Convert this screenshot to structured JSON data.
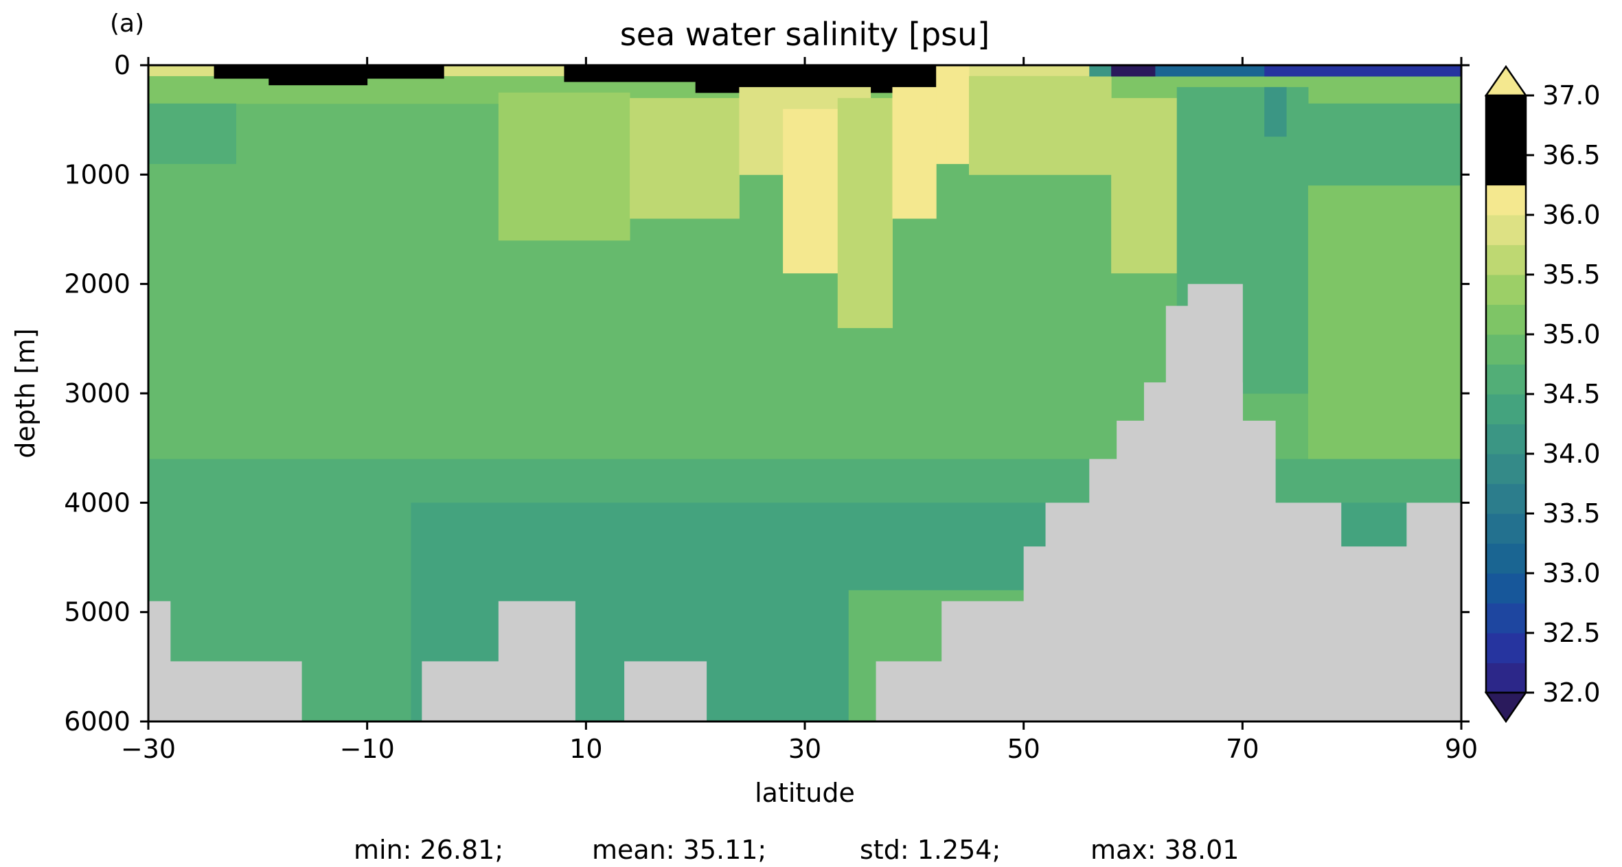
{
  "panel_label": "(a)",
  "chart_data": {
    "type": "heatmap",
    "title": "sea water salinity [psu]",
    "xlabel": "latitude",
    "ylabel": "depth [m]",
    "xlim": [
      -30,
      90
    ],
    "ylim": [
      6000,
      0
    ],
    "y_inverted": true,
    "x_ticks": [
      -30,
      -10,
      10,
      30,
      50,
      70,
      90
    ],
    "x_tick_labels": [
      "−30",
      "−10",
      "10",
      "30",
      "50",
      "70",
      "90"
    ],
    "y_ticks": [
      0,
      1000,
      2000,
      3000,
      4000,
      5000,
      6000
    ],
    "y_tick_labels": [
      "0",
      "1000",
      "2000",
      "3000",
      "4000",
      "5000",
      "6000"
    ],
    "colorbar": {
      "min": 32.0,
      "max": 37.0,
      "step": 0.25,
      "extend": "both",
      "ticks": [
        32.0,
        32.5,
        33.0,
        33.5,
        34.0,
        34.5,
        35.0,
        35.5,
        36.0,
        36.5,
        37.0
      ],
      "tick_labels": [
        "32.0",
        "32.5",
        "33.0",
        "33.5",
        "34.0",
        "34.5",
        "35.0",
        "35.5",
        "36.0",
        "36.5",
        "37.0"
      ],
      "colormap": "haline",
      "colors": [
        "#2a1a5c",
        "#2c2789",
        "#26349f",
        "#1e46a0",
        "#17579a",
        "#1a6592",
        "#23718f",
        "#2c7d8c",
        "#348a88",
        "#3b9684",
        "#44a37e",
        "#52ae77",
        "#66ba6d",
        "#7ec566",
        "#9ccf67",
        "#bed872",
        "#dde184",
        "#f4e88f"
      ]
    },
    "land_color": "#cccccc",
    "blocks": [
      {
        "x0": -30,
        "x1": 90,
        "d0": 0,
        "d1": 6000,
        "s": 34.9
      },
      {
        "x0": -30,
        "x1": 90,
        "d0": 0,
        "d1": 100,
        "s": 35.8
      },
      {
        "x0": -30,
        "x1": 90,
        "d0": 100,
        "d1": 350,
        "s": 35.2
      },
      {
        "x0": -19,
        "x1": -10,
        "d0": 0,
        "d1": 180,
        "s": 36.9
      },
      {
        "x0": -24,
        "x1": -3,
        "d0": 0,
        "d1": 120,
        "s": 36.4
      },
      {
        "x0": 8,
        "x1": 20,
        "d0": 0,
        "d1": 150,
        "s": 36.5
      },
      {
        "x0": 20,
        "x1": 34,
        "d0": 0,
        "d1": 250,
        "s": 36.8
      },
      {
        "x0": 34,
        "x1": 42,
        "d0": 0,
        "d1": 250,
        "s": 36.4
      },
      {
        "x0": 44,
        "x1": 58,
        "d0": 0,
        "d1": 80,
        "s": 35.9
      },
      {
        "x0": -30,
        "x1": -22,
        "d0": 350,
        "d1": 900,
        "s": 34.6
      },
      {
        "x0": 2,
        "x1": 14,
        "d0": 250,
        "d1": 1600,
        "s": 35.3
      },
      {
        "x0": 14,
        "x1": 24,
        "d0": 300,
        "d1": 1400,
        "s": 35.6
      },
      {
        "x0": 24,
        "x1": 36,
        "d0": 200,
        "d1": 1000,
        "s": 35.8
      },
      {
        "x0": 28,
        "x1": 33,
        "d0": 400,
        "d1": 1900,
        "s": 36.0
      },
      {
        "x0": 33,
        "x1": 38,
        "d0": 300,
        "d1": 2400,
        "s": 35.7
      },
      {
        "x0": 38,
        "x1": 42,
        "d0": 200,
        "d1": 1400,
        "s": 36.2
      },
      {
        "x0": 42,
        "x1": 45,
        "d0": 0,
        "d1": 900,
        "s": 37.0
      },
      {
        "x0": 45,
        "x1": 58,
        "d0": 100,
        "d1": 1000,
        "s": 35.6
      },
      {
        "x0": 58,
        "x1": 64,
        "d0": 300,
        "d1": 1900,
        "s": 35.5
      },
      {
        "x0": 64,
        "x1": 76,
        "d0": 200,
        "d1": 3000,
        "s": 34.7
      },
      {
        "x0": 72,
        "x1": 74,
        "d0": 200,
        "d1": 650,
        "s": 34.2
      },
      {
        "x0": 76,
        "x1": 90,
        "d0": 350,
        "d1": 1100,
        "s": 34.7
      },
      {
        "x0": 76,
        "x1": 90,
        "d0": 1100,
        "d1": 4000,
        "s": 35.0
      },
      {
        "x0": 56,
        "x1": 90,
        "d0": 0,
        "d1": 100,
        "s": 34.0
      },
      {
        "x0": 62,
        "x1": 90,
        "d0": 0,
        "d1": 100,
        "s": 33.0
      },
      {
        "x0": 72,
        "x1": 90,
        "d0": 0,
        "d1": 100,
        "s": 32.3
      },
      {
        "x0": 58,
        "x1": 62,
        "d0": 0,
        "d1": 100,
        "s": 31.5
      },
      {
        "x0": -30,
        "x1": 90,
        "d0": 3600,
        "d1": 6000,
        "s": 34.6
      },
      {
        "x0": -6,
        "x1": 90,
        "d0": 4000,
        "d1": 6000,
        "s": 34.4
      },
      {
        "x0": 34,
        "x1": 56,
        "d0": 4800,
        "d1": 6000,
        "s": 34.8
      }
    ],
    "land": [
      {
        "x0": -30,
        "x1": -28,
        "d0": 4900,
        "d1": 6000
      },
      {
        "x0": -30,
        "x1": -16,
        "d0": 5450,
        "d1": 6000
      },
      {
        "x0": -5,
        "x1": 2,
        "d0": 5450,
        "d1": 6000
      },
      {
        "x0": 2,
        "x1": 9,
        "d0": 4900,
        "d1": 6000
      },
      {
        "x0": 13.5,
        "x1": 21,
        "d0": 5450,
        "d1": 6000
      },
      {
        "x0": 36.5,
        "x1": 43,
        "d0": 5450,
        "d1": 6000
      },
      {
        "x0": 42.5,
        "x1": 52,
        "d0": 4900,
        "d1": 6000
      },
      {
        "x0": 50,
        "x1": 54,
        "d0": 4400,
        "d1": 6000
      },
      {
        "x0": 52,
        "x1": 56,
        "d0": 4000,
        "d1": 6000
      },
      {
        "x0": 56,
        "x1": 60,
        "d0": 3600,
        "d1": 6000
      },
      {
        "x0": 58.5,
        "x1": 62,
        "d0": 3250,
        "d1": 6000
      },
      {
        "x0": 61,
        "x1": 64,
        "d0": 2900,
        "d1": 6000
      },
      {
        "x0": 63,
        "x1": 66,
        "d0": 2200,
        "d1": 6000
      },
      {
        "x0": 65,
        "x1": 70,
        "d0": 2000,
        "d1": 6000
      },
      {
        "x0": 66,
        "x1": 70,
        "d0": 2900,
        "d1": 6000
      },
      {
        "x0": 69,
        "x1": 73,
        "d0": 3250,
        "d1": 6000
      },
      {
        "x0": 72,
        "x1": 79,
        "d0": 4000,
        "d1": 6000
      },
      {
        "x0": 79,
        "x1": 82,
        "d0": 4400,
        "d1": 6000
      },
      {
        "x0": 82,
        "x1": 86,
        "d0": 4400,
        "d1": 6000
      },
      {
        "x0": 85,
        "x1": 90,
        "d0": 4000,
        "d1": 6000
      }
    ]
  },
  "stats": {
    "min": "min: 26.81;",
    "mean": "mean: 35.11;",
    "std": "std: 1.254;",
    "max": "max: 38.01"
  }
}
